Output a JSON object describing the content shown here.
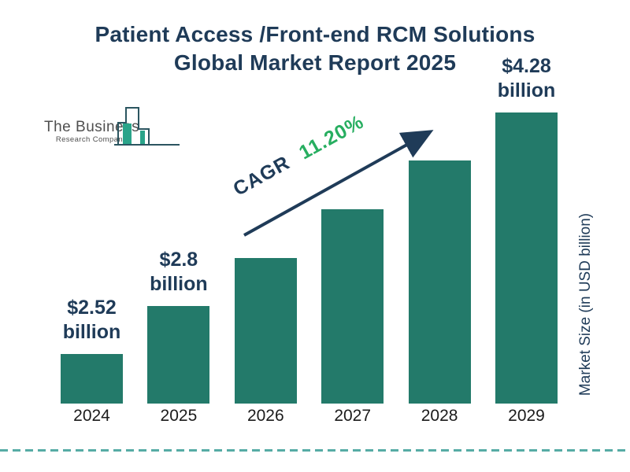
{
  "title": {
    "line1": "Patient Access /Front-end RCM Solutions",
    "line2": "Global Market Report 2025"
  },
  "logo": {
    "company_line1": "The Business",
    "company_line2": "Research Company"
  },
  "annotation": {
    "cagr_label": "CAGR",
    "cagr_value": "11.20%"
  },
  "y_axis_label": "Market Size (in USD billion)",
  "chart_data": {
    "type": "bar",
    "title": "Patient Access /Front-end RCM Solutions Global Market Report 2025",
    "categories": [
      "2024",
      "2025",
      "2026",
      "2027",
      "2028",
      "2029"
    ],
    "values": [
      2.52,
      2.8,
      3.11,
      3.46,
      3.85,
      4.28
    ],
    "bar_value_labels": [
      "$2.52 billion",
      "$2.8 billion",
      "",
      "",
      "",
      "$4.28 billion"
    ],
    "cagr": "11.20%",
    "ylabel": "Market Size (in USD billion)",
    "xlabel": "",
    "legend": "none",
    "grid": false,
    "bar_color": "#237a6a",
    "value_scale_note": "bar heights step equally (log scale consistent with constant 11.20% CAGR)"
  },
  "colors": {
    "navy": "#1f3b58",
    "bar_teal": "#237a6a",
    "accent_green": "#27ae60",
    "dashed_line_teal": "#56aca5",
    "logo_gray": "#4f4f4f",
    "logo_outline": "#2b5560",
    "logo_fill": "#2aa48a",
    "year_label": "#1b1b1b"
  }
}
